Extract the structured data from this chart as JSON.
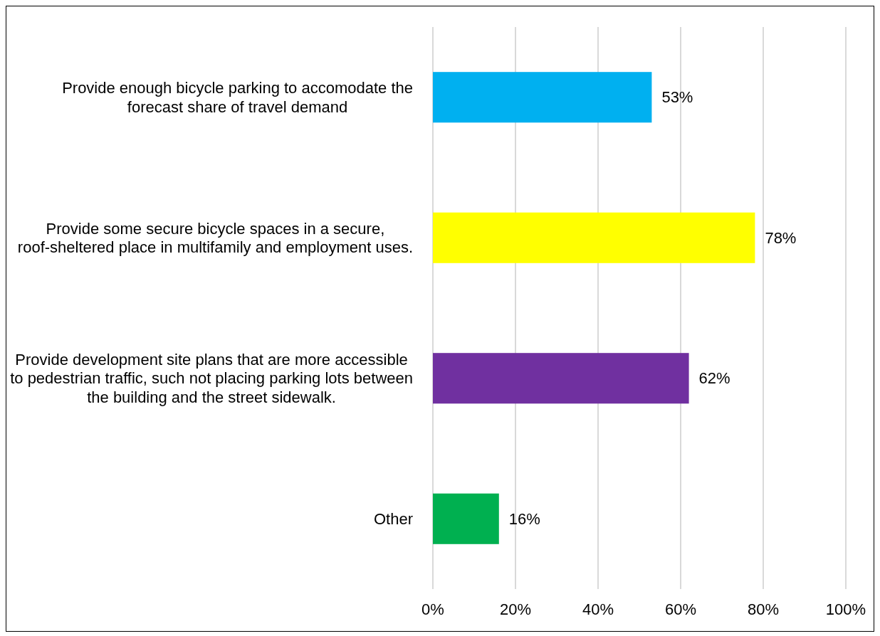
{
  "chart_data": {
    "type": "bar",
    "orientation": "horizontal",
    "categories": [
      "Provide enough bicycle parking to accomodate the forecast share of travel demand",
      "Provide some secure bicycle spaces in a secure, roof-sheltered place in multifamily and employment uses.",
      "Provide development site plans that are more accessible to pedestrian traffic, such not placing parking lots between the building and the street sidewalk.",
      "Other"
    ],
    "values": [
      53,
      78,
      62,
      16
    ],
    "colors": [
      "#00b0f0",
      "#ffff00",
      "#7030a0",
      "#00b050"
    ],
    "value_labels": [
      "53%",
      "78%",
      "62%",
      "16%"
    ],
    "xlim": [
      0,
      100
    ],
    "xticks": [
      {
        "value": 0,
        "label": "0%"
      },
      {
        "value": 20,
        "label": "20%"
      },
      {
        "value": 40,
        "label": "40%"
      },
      {
        "value": 60,
        "label": "60%"
      },
      {
        "value": 80,
        "label": "80%"
      },
      {
        "value": 100,
        "label": "100%"
      }
    ],
    "grid": "x"
  }
}
